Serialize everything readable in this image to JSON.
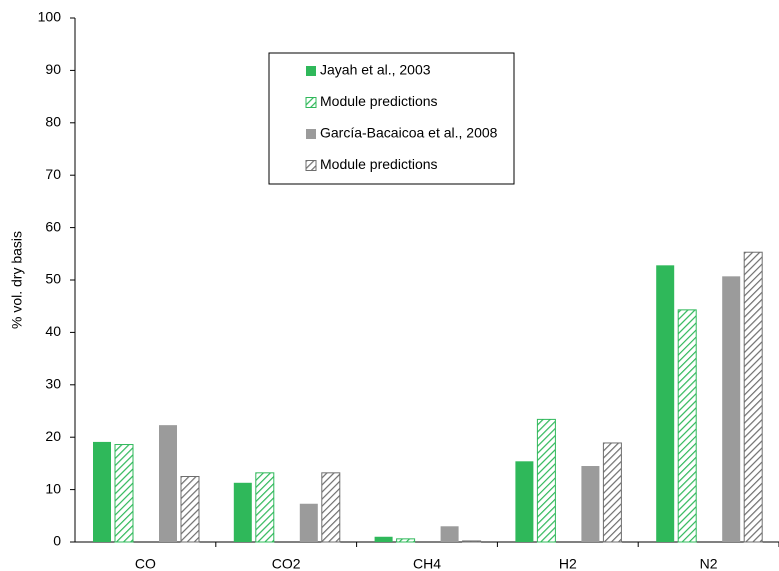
{
  "chart_data": {
    "type": "bar",
    "y_label": "% vol. dry basis",
    "categories": [
      "CO",
      "CO2",
      "CH4",
      "H2",
      "N2"
    ],
    "series": [
      {
        "name": "Jayah et al., 2003",
        "color": "#2fb85a",
        "hatch": false,
        "values": [
          19.1,
          11.3,
          1.0,
          15.4,
          52.8
        ]
      },
      {
        "name": "Module predictions",
        "color": "#2fb85a",
        "hatch": true,
        "values": [
          18.6,
          13.2,
          0.6,
          23.4,
          44.3
        ]
      },
      {
        "name": "García-Bacaicoa et al., 2008",
        "color": "#9b9b9b",
        "hatch": false,
        "values": [
          22.3,
          7.3,
          3.0,
          14.5,
          50.7
        ]
      },
      {
        "name": "Module predictions",
        "color": "#6e6e6e",
        "hatch": true,
        "values": [
          12.5,
          13.2,
          0.2,
          18.9,
          55.3
        ]
      }
    ],
    "ylim": [
      0,
      100
    ],
    "yticks": [
      0,
      10,
      20,
      30,
      40,
      50,
      60,
      70,
      80,
      90,
      100
    ],
    "grid": false,
    "legend": "top-center"
  }
}
